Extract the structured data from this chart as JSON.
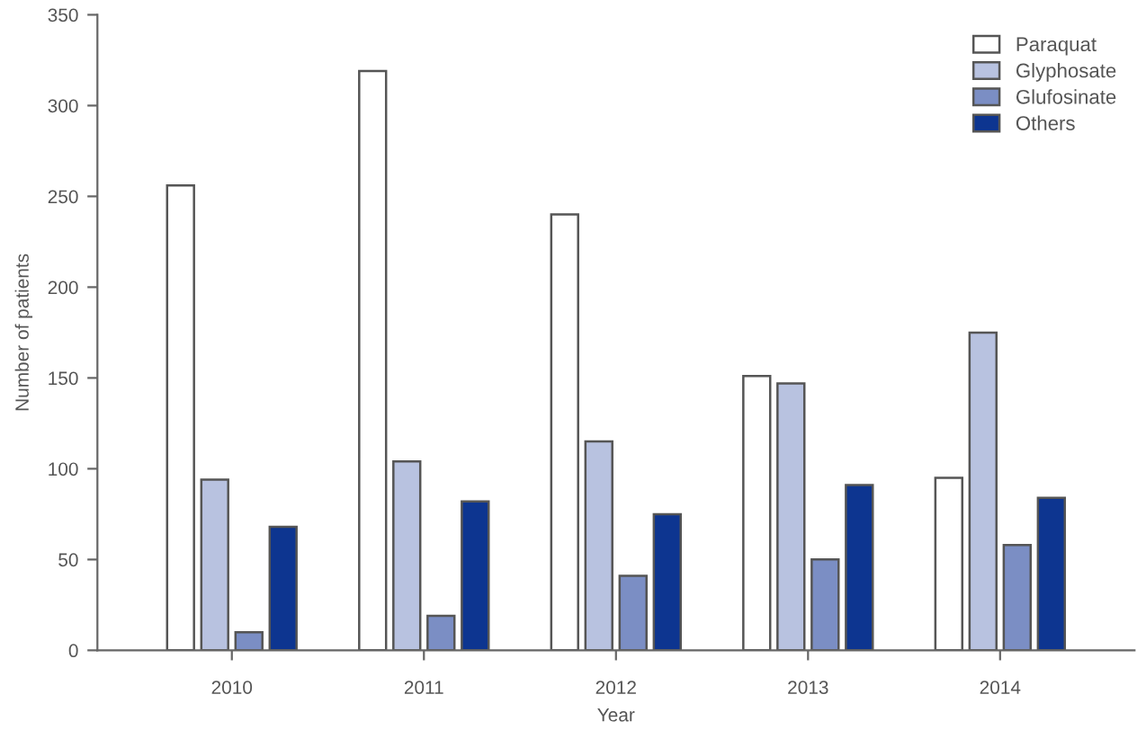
{
  "chart_data": {
    "type": "bar",
    "xlabel": "Year",
    "ylabel": "Number of patients",
    "categories": [
      "2010",
      "2011",
      "2012",
      "2013",
      "2014"
    ],
    "series": [
      {
        "name": "Paraquat",
        "color": "#ffffff",
        "values": [
          256,
          319,
          240,
          151,
          95
        ]
      },
      {
        "name": "Glyphosate",
        "color": "#b8c2e0",
        "values": [
          94,
          104,
          115,
          147,
          175
        ]
      },
      {
        "name": "Glufosinate",
        "color": "#7b8ec4",
        "values": [
          10,
          19,
          41,
          50,
          58
        ]
      },
      {
        "name": "Others",
        "color": "#0d3590",
        "values": [
          68,
          82,
          75,
          91,
          84
        ]
      }
    ],
    "ylim": [
      0,
      350
    ],
    "yticks": [
      0,
      50,
      100,
      150,
      200,
      250,
      300,
      350
    ],
    "grid": false,
    "legend": "top right"
  }
}
